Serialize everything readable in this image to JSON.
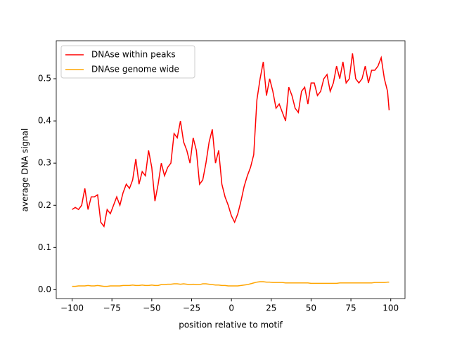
{
  "chart_data": {
    "type": "line",
    "xlabel": "position relative to motif",
    "ylabel": "average DNA signal",
    "x": [
      -100,
      -98,
      -96,
      -94,
      -92,
      -90,
      -88,
      -86,
      -84,
      -82,
      -80,
      -78,
      -76,
      -74,
      -72,
      -70,
      -68,
      -66,
      -64,
      -62,
      -60,
      -58,
      -56,
      -54,
      -52,
      -50,
      -48,
      -46,
      -44,
      -42,
      -40,
      -38,
      -36,
      -34,
      -32,
      -30,
      -28,
      -26,
      -24,
      -22,
      -20,
      -18,
      -16,
      -14,
      -12,
      -10,
      -8,
      -6,
      -4,
      -2,
      0,
      2,
      4,
      6,
      8,
      10,
      12,
      14,
      16,
      18,
      20,
      22,
      24,
      26,
      28,
      30,
      32,
      34,
      36,
      38,
      40,
      42,
      44,
      46,
      48,
      50,
      52,
      54,
      56,
      58,
      60,
      62,
      64,
      66,
      68,
      70,
      72,
      74,
      76,
      78,
      80,
      82,
      84,
      86,
      88,
      90,
      92,
      94,
      96,
      98,
      99
    ],
    "series": [
      {
        "name": "DNAse within peaks",
        "color": "#ff0000",
        "values": [
          0.19,
          0.195,
          0.19,
          0.2,
          0.24,
          0.19,
          0.22,
          0.22,
          0.225,
          0.16,
          0.15,
          0.19,
          0.18,
          0.2,
          0.22,
          0.2,
          0.23,
          0.25,
          0.24,
          0.26,
          0.31,
          0.25,
          0.28,
          0.27,
          0.33,
          0.29,
          0.21,
          0.25,
          0.3,
          0.27,
          0.29,
          0.3,
          0.37,
          0.36,
          0.4,
          0.35,
          0.33,
          0.3,
          0.36,
          0.33,
          0.25,
          0.26,
          0.3,
          0.35,
          0.38,
          0.3,
          0.33,
          0.25,
          0.22,
          0.2,
          0.175,
          0.16,
          0.18,
          0.21,
          0.245,
          0.27,
          0.29,
          0.32,
          0.45,
          0.5,
          0.54,
          0.46,
          0.5,
          0.47,
          0.43,
          0.44,
          0.42,
          0.4,
          0.48,
          0.46,
          0.43,
          0.42,
          0.47,
          0.48,
          0.44,
          0.49,
          0.49,
          0.46,
          0.47,
          0.5,
          0.51,
          0.47,
          0.49,
          0.53,
          0.5,
          0.54,
          0.49,
          0.5,
          0.56,
          0.5,
          0.49,
          0.5,
          0.53,
          0.49,
          0.52,
          0.52,
          0.53,
          0.55,
          0.5,
          0.47,
          0.425
        ]
      },
      {
        "name": "DNAse genome wide",
        "color": "#ffa500",
        "values": [
          0.008,
          0.008,
          0.009,
          0.009,
          0.009,
          0.01,
          0.009,
          0.009,
          0.01,
          0.009,
          0.008,
          0.008,
          0.009,
          0.009,
          0.009,
          0.009,
          0.01,
          0.01,
          0.01,
          0.011,
          0.01,
          0.01,
          0.011,
          0.01,
          0.01,
          0.011,
          0.01,
          0.01,
          0.012,
          0.012,
          0.013,
          0.013,
          0.014,
          0.014,
          0.013,
          0.014,
          0.013,
          0.012,
          0.013,
          0.012,
          0.012,
          0.014,
          0.014,
          0.013,
          0.012,
          0.011,
          0.011,
          0.01,
          0.01,
          0.009,
          0.009,
          0.009,
          0.009,
          0.01,
          0.011,
          0.012,
          0.014,
          0.016,
          0.018,
          0.019,
          0.019,
          0.018,
          0.018,
          0.017,
          0.017,
          0.017,
          0.017,
          0.016,
          0.016,
          0.016,
          0.016,
          0.016,
          0.016,
          0.016,
          0.016,
          0.015,
          0.015,
          0.015,
          0.015,
          0.015,
          0.015,
          0.015,
          0.015,
          0.015,
          0.016,
          0.016,
          0.016,
          0.016,
          0.016,
          0.016,
          0.016,
          0.016,
          0.016,
          0.016,
          0.016,
          0.017,
          0.017,
          0.017,
          0.017,
          0.018,
          0.018
        ]
      }
    ],
    "xlim": [
      -109.95,
      108.95
    ],
    "ylim": [
      -0.021,
      0.59
    ],
    "xticks": [
      {
        "value": -100,
        "label": "−100"
      },
      {
        "value": -75,
        "label": "−75"
      },
      {
        "value": -50,
        "label": "−50"
      },
      {
        "value": -25,
        "label": "−25"
      },
      0,
      25,
      50,
      75,
      100
    ],
    "yticks": [
      {
        "value": 0,
        "label": "0.0"
      },
      0.1,
      0.2,
      0.3,
      0.4,
      0.5
    ],
    "legend": "upper left"
  }
}
